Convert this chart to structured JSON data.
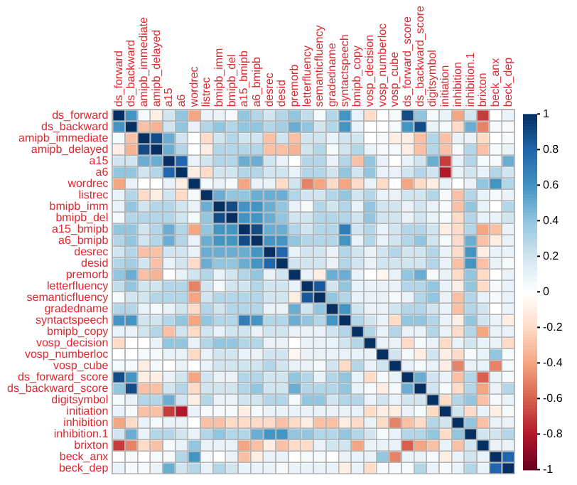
{
  "chart_data": {
    "type": "heatmap",
    "grid": true,
    "categories": [
      "ds_forward",
      "ds_backward",
      "amipb_immediate",
      "amipb_delayed",
      "a15",
      "a6",
      "wordrec",
      "listrec",
      "bmipb_imm",
      "bmipb_del",
      "a15_bmipb",
      "a6_bmipb",
      "desrec",
      "desid",
      "premorb",
      "letterfluency",
      "semanticfluency",
      "gradedname",
      "syntactspeech",
      "bmipb_copy",
      "vosp_decision",
      "vosp_numberloc",
      "vosp_cube",
      "ds_forward_score",
      "ds_backward_score",
      "digitsymbol",
      "initiation",
      "inhibition",
      "inhibition.1",
      "brixton",
      "beck_anx",
      "beck_dep"
    ],
    "y_categories": [
      "ds_forward",
      "ds_backward",
      "amipb_immediate",
      "amipb_delayed",
      "a15",
      "a6",
      "wordrec",
      "listrec",
      "bmipb_imm",
      "bmipb_del",
      "a15_bmipb",
      "a6_bmipb",
      "desrec",
      "desid",
      "premorb",
      "letterfluency",
      "semanticfluency",
      "gradedname",
      "syntactspeech",
      "bmipb_copy",
      "vosp_decision",
      "vosp_numberloc",
      "vosp_cube",
      "ds_forward_score",
      "ds_backward_score",
      "digitsymbol",
      "initiation",
      "inhibition",
      "inhibition.1",
      "brixton",
      "beck_anx",
      "beck_dep"
    ],
    "cells": [
      [
        1,
        0.6,
        0.05,
        -0.1,
        0.2,
        0.4,
        -0.4,
        0.1,
        0.1,
        0.05,
        0.4,
        0.3,
        0.2,
        0.3,
        0.4,
        0.25,
        0.05,
        0.3,
        0.6,
        0.1,
        -0.2,
        0,
        0.05,
        0.9,
        0.4,
        0.05,
        0.1,
        -0.4,
        0.2,
        -0.7,
        0,
        0.1
      ],
      [
        0.6,
        1,
        -0.3,
        -0.35,
        0.2,
        0.4,
        0.1,
        0.3,
        0.4,
        0.3,
        0.4,
        0.4,
        0.3,
        0.35,
        0.5,
        0.4,
        0.2,
        0.3,
        0.6,
        0.1,
        0,
        0,
        0.05,
        0.6,
        0.9,
        0.1,
        0.05,
        -0.2,
        0.5,
        -0.5,
        0.05,
        0.05
      ],
      [
        0.05,
        -0.3,
        1,
        0.9,
        0.5,
        0.2,
        0,
        -0.2,
        0.2,
        0.3,
        0.2,
        0.2,
        -0.3,
        0.2,
        -0.3,
        0.2,
        0.2,
        0.1,
        0.2,
        0.2,
        0,
        0.05,
        -0.1,
        -0.1,
        -0.3,
        0.3,
        -0.3,
        0.1,
        0.1,
        -0.2,
        0,
        0.05
      ],
      [
        -0.1,
        -0.35,
        0.9,
        1,
        0.5,
        0.3,
        0,
        -0.1,
        0.3,
        0.3,
        0.3,
        0.3,
        -0.3,
        -0.3,
        -0.35,
        0.2,
        0.3,
        0.05,
        0.2,
        0.3,
        0.1,
        0.05,
        0.05,
        -0.1,
        -0.3,
        0.3,
        -0.3,
        0.05,
        0.3,
        -0.3,
        0.05,
        0.1
      ],
      [
        0.2,
        0.2,
        0.5,
        0.5,
        1,
        0.8,
        0.1,
        0.2,
        0.3,
        0.3,
        0.5,
        0.5,
        0.2,
        0.1,
        0,
        0.3,
        0.3,
        0.1,
        0.3,
        -0.3,
        0.4,
        0.1,
        0,
        0.1,
        0.2,
        0.5,
        -0.7,
        0.1,
        0.3,
        0.05,
        0.05,
        0.5
      ],
      [
        0.4,
        0.4,
        0.2,
        0.3,
        0.8,
        1,
        -0.1,
        -0.2,
        0.2,
        0.2,
        0.3,
        0.3,
        0.2,
        0.2,
        0.1,
        0.3,
        0.3,
        0.2,
        0.4,
        0.2,
        0.4,
        0.1,
        0.1,
        0.2,
        0.3,
        0.2,
        -0.8,
        0.1,
        0.2,
        0.1,
        0.3,
        0.2
      ],
      [
        -0.4,
        0.1,
        0,
        0,
        0.1,
        -0.1,
        1,
        0.05,
        0.1,
        0.05,
        -0.4,
        0.1,
        0.1,
        -0.2,
        0.2,
        -0.5,
        -0.4,
        -0.2,
        -0.4,
        -0.2,
        0.1,
        -0.2,
        0,
        -0.4,
        -0.2,
        -0.1,
        0.1,
        0,
        0.1,
        0.4,
        0.6,
        0.3
      ],
      [
        0.1,
        0.3,
        -0.2,
        -0.1,
        0.2,
        -0.2,
        0.05,
        1,
        0.5,
        0.4,
        0.4,
        0.5,
        0.5,
        0.5,
        0.3,
        0.2,
        0.2,
        0.3,
        0.4,
        0.2,
        0.3,
        0.1,
        0.1,
        0.2,
        0.2,
        0.3,
        0.05,
        -0.3,
        0.3,
        0.1,
        0.05,
        0.1
      ],
      [
        0.1,
        0.4,
        0.2,
        0.3,
        0.3,
        0.2,
        0.1,
        0.5,
        1,
        0.9,
        0.6,
        0.6,
        0.5,
        0.4,
        0.1,
        0.05,
        0.3,
        0.2,
        0.3,
        0.1,
        0.4,
        0.2,
        0.2,
        0.1,
        0.2,
        0.1,
        0.05,
        -0.3,
        0.4,
        0.1,
        0,
        0.3
      ],
      [
        0.05,
        0.3,
        0.3,
        0.3,
        0.3,
        0.2,
        0.05,
        0.4,
        0.9,
        1,
        0.6,
        0.6,
        0.5,
        0.4,
        0.2,
        0.2,
        0.3,
        0.3,
        0.3,
        0.2,
        0.4,
        0.2,
        0.2,
        0.1,
        0.2,
        0.1,
        0.05,
        -0.2,
        0.3,
        0.1,
        0.1,
        0.2
      ],
      [
        0.4,
        0.4,
        0.2,
        0.3,
        0.5,
        0.3,
        -0.4,
        0.4,
        0.6,
        0.6,
        1,
        0.9,
        0.5,
        0.5,
        0.3,
        0.2,
        0.3,
        0.3,
        0.7,
        0.2,
        0.3,
        0.1,
        0.2,
        0.3,
        0.3,
        0.2,
        -0.1,
        -0.2,
        0.3,
        -0.4,
        -0.3,
        0.1
      ],
      [
        0.3,
        0.4,
        0.2,
        0.3,
        0.5,
        0.3,
        0.1,
        0.5,
        0.6,
        0.6,
        0.9,
        1,
        0.6,
        0.6,
        0.4,
        0.3,
        0.3,
        0.3,
        0.6,
        0.1,
        0.3,
        0.1,
        0.2,
        0.3,
        0.4,
        0.2,
        0.05,
        -0.2,
        0.5,
        -0.3,
        -0.1,
        0.1
      ],
      [
        0.2,
        0.3,
        -0.3,
        -0.3,
        0.2,
        0.2,
        0.1,
        0.5,
        0.5,
        0.5,
        0.5,
        0.6,
        1,
        0.8,
        0.1,
        0.2,
        0.2,
        0.1,
        0.3,
        0.2,
        0.1,
        0.2,
        0.3,
        0.2,
        0.2,
        0.3,
        0.1,
        -0.2,
        0.6,
        -0.1,
        0.1,
        0.1
      ],
      [
        0.3,
        0.35,
        0.2,
        -0.3,
        0.1,
        0.2,
        -0.2,
        0.5,
        0.4,
        0.4,
        0.5,
        0.6,
        0.8,
        1,
        0.2,
        0.2,
        0.2,
        0.1,
        0.3,
        0.2,
        0.1,
        0.2,
        0.2,
        0.2,
        0.2,
        0.3,
        0.1,
        -0.3,
        0.6,
        -0.3,
        0.1,
        0.05
      ],
      [
        0.4,
        0.5,
        -0.3,
        -0.35,
        0,
        0.1,
        0.2,
        0.3,
        0.1,
        0.2,
        0.3,
        0.4,
        0.1,
        0.2,
        1,
        0.1,
        -0.1,
        0.5,
        0.5,
        0.1,
        0,
        -0.05,
        0.1,
        0.4,
        0.5,
        0.05,
        0.1,
        -0.2,
        0.4,
        -0.2,
        0,
        0.1
      ],
      [
        0.25,
        0.4,
        0.2,
        0.2,
        0.3,
        0.3,
        -0.5,
        0.2,
        0.05,
        0.2,
        0.2,
        0.3,
        0.2,
        0.2,
        0.1,
        1,
        0.85,
        0.2,
        0.4,
        0.1,
        0.1,
        0.1,
        0.1,
        0.3,
        0.3,
        0.4,
        0.1,
        -0.1,
        0.4,
        -0.2,
        0.05,
        0.1
      ],
      [
        0.05,
        0.2,
        0.2,
        0.3,
        0.3,
        0.3,
        -0.4,
        0.2,
        0.3,
        0.3,
        0.3,
        0.3,
        0.2,
        0.2,
        -0.1,
        0.85,
        1,
        0.4,
        0.3,
        0.1,
        0.1,
        0.1,
        0.05,
        0.1,
        0.3,
        0.4,
        0.1,
        -0.3,
        0.3,
        0.1,
        0.05,
        0.1
      ],
      [
        0.3,
        0.3,
        0.1,
        0.05,
        0.1,
        0.2,
        -0.2,
        0.3,
        0.2,
        0.3,
        0.3,
        0.3,
        0.1,
        0.1,
        0.5,
        0.2,
        0.4,
        1,
        0.6,
        0.2,
        0.1,
        0.1,
        0.2,
        0.3,
        0.3,
        0.2,
        0.1,
        -0.3,
        0.3,
        0.2,
        0,
        0.1
      ],
      [
        0.6,
        0.6,
        0.2,
        0.2,
        0.3,
        0.4,
        -0.4,
        0.4,
        0.3,
        0.3,
        0.7,
        0.6,
        0.3,
        0.3,
        0.5,
        0.4,
        0.3,
        0.6,
        1,
        0.3,
        0.2,
        0.1,
        -0.2,
        0.4,
        0.4,
        0.3,
        0.1,
        -0.1,
        0.4,
        0.2,
        0.1,
        -0.1
      ],
      [
        0.1,
        0.1,
        0.2,
        0.3,
        -0.3,
        0.2,
        -0.2,
        0.2,
        0.1,
        0.2,
        0.2,
        0.1,
        0.2,
        0.2,
        0.1,
        0.1,
        0.1,
        0.2,
        0.3,
        1,
        0.3,
        0.1,
        0.3,
        0.1,
        0.1,
        0.3,
        0.1,
        -0.2,
        0.3,
        -0.4,
        0.1,
        0.1
      ],
      [
        -0.2,
        0,
        0,
        0.1,
        0.4,
        0.4,
        0.1,
        0.3,
        0.4,
        0.4,
        0.3,
        0.3,
        0.1,
        0.1,
        0,
        0.1,
        0.1,
        0.1,
        0.2,
        0.3,
        1,
        0.1,
        0.1,
        -0.2,
        0.05,
        0.1,
        -0.2,
        0.1,
        0.2,
        0.1,
        0.1,
        -0.2
      ],
      [
        0,
        0,
        0.05,
        0.05,
        0.1,
        0.1,
        -0.2,
        0.1,
        0.2,
        0.2,
        0.1,
        0.1,
        0.2,
        0.2,
        -0.05,
        0.1,
        0.1,
        0.1,
        0.1,
        0.1,
        0.1,
        1,
        0.2,
        0.05,
        -0.1,
        0.2,
        -0.1,
        -0.2,
        0.05,
        0.1,
        0.4,
        0.05
      ],
      [
        0.05,
        0.05,
        -0.1,
        0.05,
        0,
        0.1,
        0,
        0.1,
        0.2,
        0.2,
        0.2,
        0.2,
        0.3,
        0.2,
        0.1,
        0.1,
        0.05,
        0.2,
        -0.2,
        0.3,
        0.1,
        0.2,
        1,
        0.1,
        0.05,
        0.1,
        -0.1,
        -0.5,
        0.1,
        0.1,
        -0.5,
        0.05
      ],
      [
        0.9,
        0.6,
        -0.1,
        -0.1,
        0.1,
        0.2,
        -0.4,
        0.2,
        0.1,
        0.1,
        0.3,
        0.3,
        0.2,
        0.2,
        0.4,
        0.3,
        0.1,
        0.3,
        0.4,
        0.1,
        -0.2,
        0.05,
        0.1,
        1,
        0.5,
        0.2,
        0.1,
        -0.3,
        0.3,
        -0.6,
        0.1,
        0.05
      ],
      [
        0.4,
        0.9,
        -0.3,
        -0.3,
        0.2,
        0.3,
        -0.2,
        0.2,
        0.2,
        0.2,
        0.3,
        0.4,
        0.2,
        0.2,
        0.5,
        0.3,
        0.3,
        0.3,
        0.4,
        0.1,
        0.05,
        -0.1,
        0.05,
        0.5,
        1,
        0.2,
        0.05,
        -0.2,
        0.3,
        -0.4,
        0.1,
        0.3
      ],
      [
        0.05,
        0.1,
        0.3,
        0.3,
        0.5,
        0.2,
        -0.1,
        0.3,
        0.1,
        0.1,
        0.2,
        0.2,
        0.3,
        0.3,
        0.05,
        0.4,
        0.4,
        0.2,
        0.3,
        0.3,
        0.1,
        0.2,
        0.1,
        0.2,
        0.2,
        1,
        -0.2,
        0.3,
        0.4,
        -0.3,
        0.05,
        0.1
      ],
      [
        0.1,
        0.05,
        -0.3,
        -0.3,
        -0.7,
        -0.8,
        0.1,
        0.05,
        0.05,
        0.05,
        -0.1,
        0.05,
        0.1,
        0.1,
        0.1,
        0.1,
        0.1,
        0.1,
        0.1,
        0.1,
        -0.2,
        -0.1,
        -0.1,
        0.1,
        0.05,
        -0.2,
        1,
        0.2,
        -0.2,
        0.1,
        -0.1,
        0.05
      ],
      [
        -0.4,
        -0.2,
        0.1,
        0.05,
        0.1,
        0.1,
        0,
        -0.3,
        -0.3,
        -0.2,
        -0.2,
        -0.2,
        -0.2,
        -0.3,
        -0.2,
        -0.1,
        -0.3,
        -0.3,
        -0.1,
        -0.2,
        0.1,
        -0.2,
        -0.5,
        -0.3,
        -0.2,
        0.3,
        0.2,
        1,
        0.4,
        -0.3,
        0.1,
        0.1
      ],
      [
        0.2,
        0.5,
        0.1,
        0.3,
        0.3,
        0.2,
        0.1,
        0.3,
        0.4,
        0.3,
        0.3,
        0.5,
        0.6,
        0.6,
        0.4,
        0.4,
        0.3,
        0.3,
        0.4,
        0.3,
        0.2,
        0.05,
        0.1,
        0.3,
        0.3,
        0.4,
        -0.2,
        0.4,
        1,
        0.2,
        0.2,
        0.3
      ],
      [
        -0.7,
        -0.5,
        -0.2,
        -0.3,
        0.05,
        0.1,
        0.4,
        0.1,
        0.1,
        0.1,
        -0.4,
        -0.3,
        -0.1,
        -0.3,
        -0.2,
        -0.2,
        0.1,
        0.2,
        0.2,
        -0.4,
        0.1,
        0.1,
        0.1,
        -0.6,
        -0.4,
        -0.3,
        0.1,
        -0.3,
        0.2,
        1,
        0.1,
        0.1
      ],
      [
        0,
        0.05,
        0,
        0.05,
        0.05,
        0.3,
        0.6,
        0.05,
        0,
        0.1,
        -0.3,
        -0.1,
        0.1,
        0.1,
        0,
        0.05,
        0.05,
        0,
        0.1,
        0.1,
        0.1,
        0.4,
        -0.5,
        0.1,
        0.1,
        0.05,
        -0.1,
        0.1,
        0.2,
        0.1,
        1,
        0.8
      ],
      [
        0.1,
        0.05,
        0.05,
        0.1,
        0.5,
        0.2,
        0.3,
        0.1,
        0.3,
        0.2,
        0.1,
        0.1,
        0.1,
        0.05,
        0.1,
        0.1,
        0.1,
        0.1,
        -0.1,
        0.1,
        -0.2,
        0.05,
        0.05,
        0.05,
        0.3,
        0.1,
        0.05,
        0.1,
        0.3,
        0.1,
        0.8,
        1
      ]
    ],
    "clim": [
      -1,
      1
    ],
    "cticks": [
      -1,
      -0.8,
      -0.6,
      -0.4,
      -0.2,
      0,
      0.2,
      0.4,
      0.6,
      0.8,
      1
    ]
  }
}
